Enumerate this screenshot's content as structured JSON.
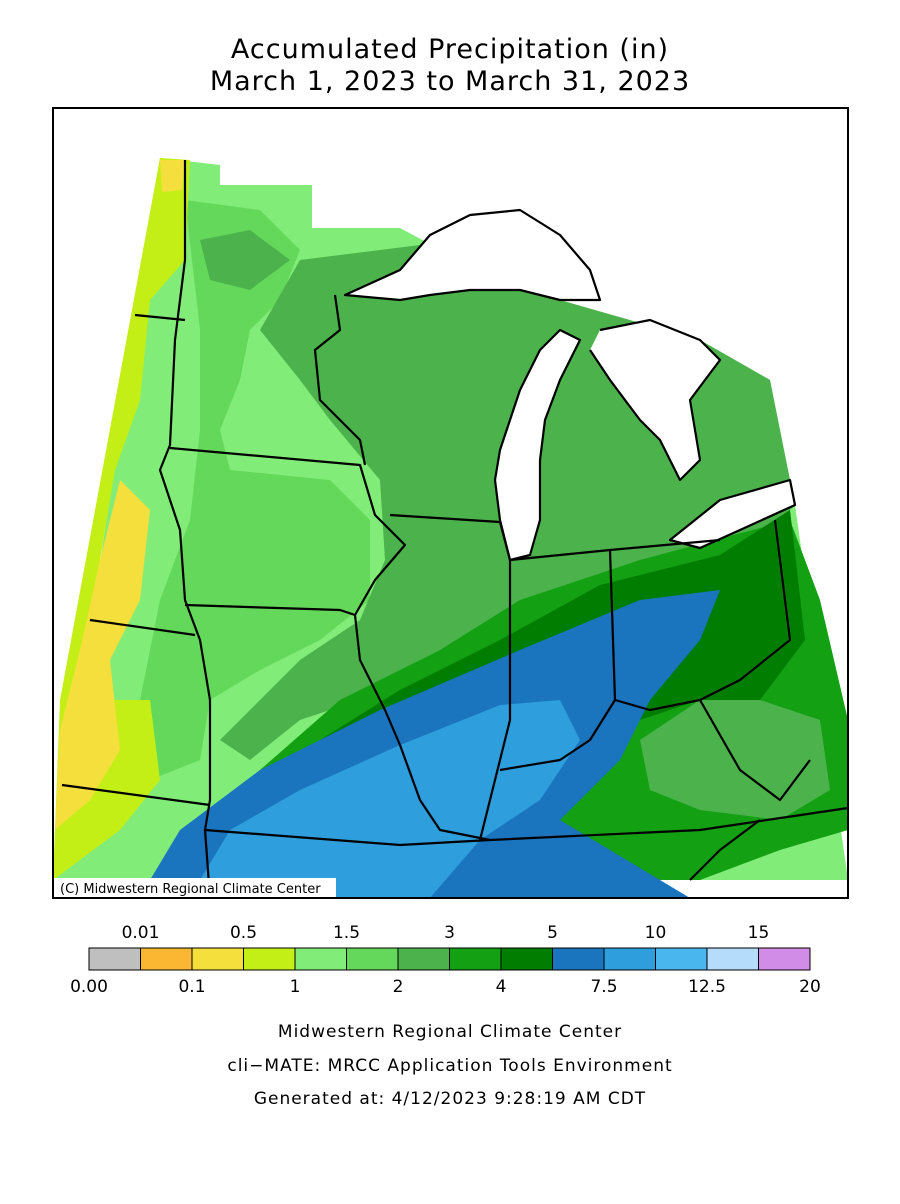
{
  "title": [
    "Accumulated Precipitation (in)",
    "March 1, 2023 to March 31, 2023"
  ],
  "map": {
    "credit": "(C) Midwestern Regional Climate Center"
  },
  "legend": {
    "colors": [
      "#bfbfbf",
      "#fcb732",
      "#f4df3c",
      "#c4ef16",
      "#82ec78",
      "#64d85a",
      "#4cb24c",
      "#13a013",
      "#017e01",
      "#1a74be",
      "#2e9edc",
      "#4ab6ee",
      "#b5dcfa",
      "#d18ce8"
    ],
    "labels": [
      "0.00",
      "0.01",
      "0.1",
      "0.5",
      "1",
      "1.5",
      "2",
      "3",
      "4",
      "5",
      "7.5",
      "10",
      "12.5",
      "15",
      "20"
    ]
  },
  "footer": [
    "Midwestern Regional Climate Center",
    "cli−MATE: MRCC Application Tools Environment",
    "Generated at: 4/12/2023 9:28:19 AM CDT"
  ]
}
